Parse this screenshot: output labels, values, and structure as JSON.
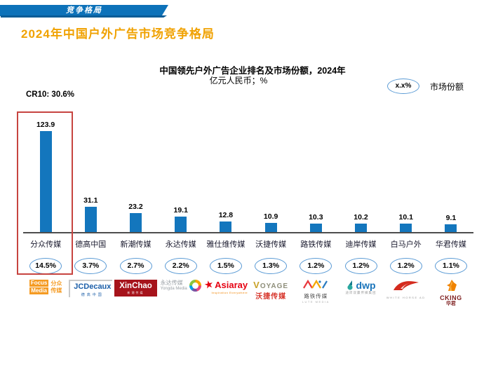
{
  "header": {
    "tab_label": "竞争格局"
  },
  "page_title": "2024年中国户外广告市场竞争格局",
  "chart": {
    "title": "中国领先户外广告企业排名及市场份额，2024年",
    "subtitle": "亿元人民币；%",
    "cr10_label": "CR10: 30.6%",
    "legend": {
      "sample": "x.x%",
      "label": "市场份额"
    }
  },
  "chart_data": {
    "type": "bar",
    "title": "中国领先户外广告企业排名及市场份额，2024年",
    "unit": "亿元人民币；%",
    "categories": [
      "分众传媒",
      "德高中国",
      "新潮传媒",
      "永达传媒",
      "雅仕维传媒",
      "沃捷传媒",
      "路铁传媒",
      "迪岸传媒",
      "白马户外",
      "华君传媒"
    ],
    "values": [
      123.9,
      31.1,
      23.2,
      19.1,
      12.8,
      10.9,
      10.3,
      10.2,
      10.1,
      9.1
    ],
    "share_percent": [
      "14.5%",
      "3.7%",
      "2.7%",
      "2.2%",
      "1.5%",
      "1.3%",
      "1.2%",
      "1.2%",
      "1.2%",
      "1.1%"
    ],
    "highlight_index": 0,
    "cr10": "30.6%",
    "ylim": [
      0,
      130
    ],
    "grid": false,
    "legend_position": "top-right",
    "bar_color": "#1376bd"
  },
  "colors": {
    "header_blue": "#0d72b9",
    "title_orange": "#f0a202",
    "bar_blue": "#1376bd",
    "highlight_red": "#c74440",
    "oval_border": "#5b9bd5"
  },
  "logos": [
    {
      "name": "Focus Media",
      "line1": "Focus",
      "line2": "Media",
      "cn1": "分众",
      "cn2": "传媒"
    },
    {
      "name": "JCDecaux",
      "text": "JCDecaux",
      "cn": "德高中国"
    },
    {
      "name": "XinChao",
      "text": "XinChao",
      "sub": "新潮传媒"
    },
    {
      "name": "Yongda Media",
      "cn": "永达传媒",
      "en": "Yongda Media"
    },
    {
      "name": "Asiaray",
      "text": "Asiaray",
      "tagline": "Inspiration Everywhere"
    },
    {
      "name": "VOYAGE",
      "text": "VOYAGE",
      "cn": "沃捷传媒"
    },
    {
      "name": "Lute Media",
      "cn": "路铁传媒",
      "en": "LUTE MEDIA"
    },
    {
      "name": "dwp",
      "text": "dwp",
      "sub": "迪岸双赢传媒集团"
    },
    {
      "name": "White Horse",
      "en": "WHITE HORSE AD"
    },
    {
      "name": "CKING",
      "text": "CKING",
      "cn": "华君"
    }
  ]
}
